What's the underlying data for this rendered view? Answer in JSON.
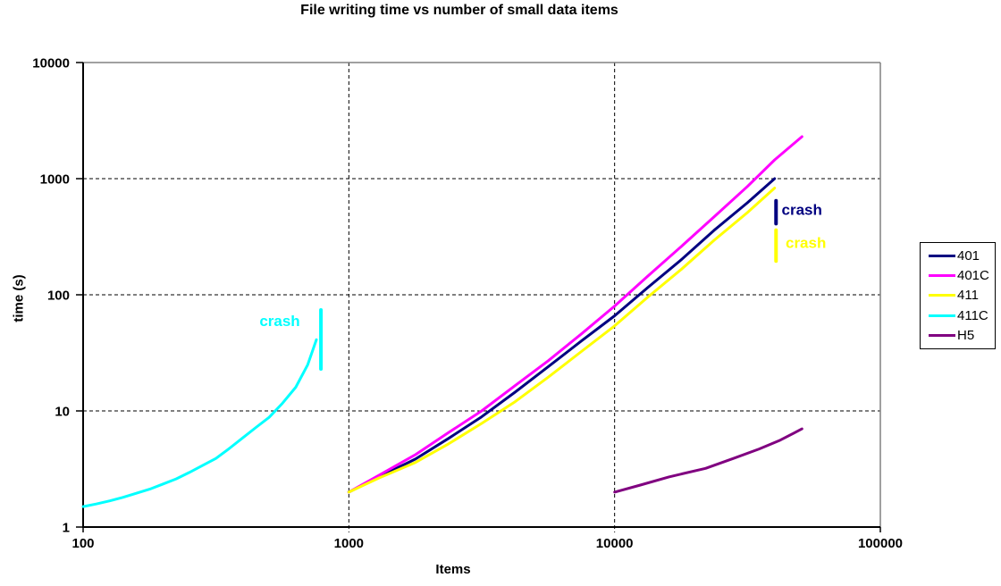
{
  "chart_data": {
    "type": "line",
    "title": "File writing time vs number of small data items",
    "xlabel": "Items",
    "ylabel": "time (s)",
    "x_scale": "log",
    "y_scale": "log",
    "xlim": [
      100,
      100000
    ],
    "ylim": [
      1,
      10000
    ],
    "x_ticks": [
      "100",
      "1000",
      "10000",
      "100000"
    ],
    "y_ticks": [
      "1",
      "10",
      "100",
      "1000",
      "10000"
    ],
    "grid": "dashed black, gridlines at each decade; gray top and right plot border",
    "legend_position": "right",
    "series": [
      {
        "name": "401",
        "color": "#000080",
        "x": [
          1000,
          1300,
          1780,
          2370,
          3160,
          4220,
          5620,
          7500,
          10000,
          13300,
          17800,
          23700,
          31600,
          40000
        ],
        "y": [
          2,
          2.7,
          3.85,
          5.8,
          8.9,
          14.5,
          24,
          40,
          66,
          115,
          200,
          360,
          620,
          1000
        ]
      },
      {
        "name": "401C",
        "color": "#FF00FF",
        "x": [
          1000,
          1300,
          1780,
          2370,
          3160,
          4220,
          5620,
          7500,
          10000,
          13300,
          17800,
          23700,
          31600,
          40000,
          50700
        ],
        "y": [
          2,
          2.8,
          4.2,
          6.5,
          10,
          16.5,
          27,
          46,
          80,
          144,
          260,
          470,
          856,
          1450,
          2300
        ]
      },
      {
        "name": "411",
        "color": "#FFFF00",
        "x": [
          1000,
          1300,
          1780,
          2370,
          3160,
          4220,
          5620,
          7500,
          10000,
          13300,
          17800,
          23700,
          31600,
          40000
        ],
        "y": [
          2,
          2.65,
          3.6,
          5.2,
          7.8,
          12,
          19.5,
          32.5,
          54,
          95,
          165,
          295,
          510,
          830
        ]
      },
      {
        "name": "411C",
        "color": "#00FFFF",
        "x": [
          100,
          112,
          126,
          141,
          158,
          178,
          200,
          224,
          251,
          282,
          316,
          355,
          398,
          447,
          501,
          562,
          631,
          700,
          755
        ],
        "y": [
          1.5,
          1.58,
          1.68,
          1.8,
          1.95,
          2.12,
          2.35,
          2.6,
          2.95,
          3.4,
          3.9,
          4.75,
          5.85,
          7.2,
          8.8,
          11.6,
          16,
          25,
          41
        ]
      },
      {
        "name": "H5",
        "color": "#800080",
        "x": [
          10000,
          12500,
          16000,
          22000,
          28000,
          35000,
          42000,
          50700
        ],
        "y": [
          2,
          2.3,
          2.7,
          3.2,
          3.9,
          4.7,
          5.6,
          7
        ]
      }
    ],
    "annotations": [
      {
        "text": "crash",
        "series": "411C",
        "color": "#00FFFF",
        "line": {
          "items": 785,
          "t_min": 23,
          "t_max": 74
        },
        "label": {
          "items": 655,
          "t": 60,
          "anchor": "end"
        }
      },
      {
        "text": "crash",
        "series": "401",
        "color": "#000080",
        "line": {
          "items": 40500,
          "t_min": 410,
          "t_max": 645
        },
        "label": {
          "items": 42500,
          "t": 545,
          "anchor": "start"
        }
      },
      {
        "text": "crash",
        "series": "411",
        "color": "#FFFF00",
        "line": {
          "items": 40500,
          "t_min": 195,
          "t_max": 360
        },
        "label": {
          "items": 44000,
          "t": 282,
          "anchor": "start"
        }
      }
    ]
  },
  "legend": {
    "items": [
      {
        "label": "401",
        "color": "#000080"
      },
      {
        "label": "401C",
        "color": "#FF00FF"
      },
      {
        "label": "411",
        "color": "#FFFF00"
      },
      {
        "label": "411C",
        "color": "#00FFFF"
      },
      {
        "label": "H5",
        "color": "#800080"
      }
    ]
  },
  "style_colors": {
    "axis": "#000000",
    "plot_border": "#808080",
    "gridline": "#000000",
    "background": "#FFFFFF"
  }
}
